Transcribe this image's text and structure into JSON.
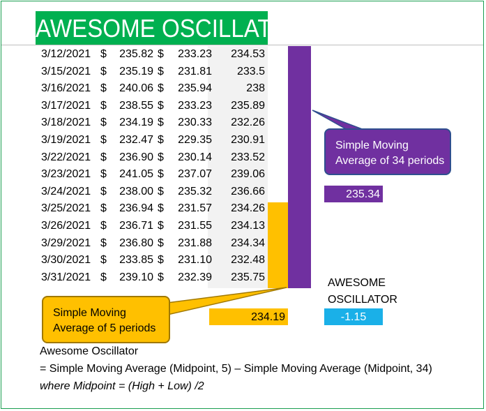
{
  "title": "AWESOME OSCILLATOR",
  "currency_symbol": "$",
  "rows": [
    {
      "date": "3/12/2021",
      "high": "235.82",
      "low": "233.23",
      "mid": "234.53"
    },
    {
      "date": "3/15/2021",
      "high": "235.19",
      "low": "231.81",
      "mid": "233.5"
    },
    {
      "date": "3/16/2021",
      "high": "240.06",
      "low": "235.94",
      "mid": "238"
    },
    {
      "date": "3/17/2021",
      "high": "238.55",
      "low": "233.23",
      "mid": "235.89"
    },
    {
      "date": "3/18/2021",
      "high": "234.19",
      "low": "230.33",
      "mid": "232.26"
    },
    {
      "date": "3/19/2021",
      "high": "232.47",
      "low": "229.35",
      "mid": "230.91"
    },
    {
      "date": "3/22/2021",
      "high": "236.90",
      "low": "230.14",
      "mid": "233.52"
    },
    {
      "date": "3/23/2021",
      "high": "241.05",
      "low": "237.07",
      "mid": "239.06"
    },
    {
      "date": "3/24/2021",
      "high": "238.00",
      "low": "235.32",
      "mid": "236.66"
    },
    {
      "date": "3/25/2021",
      "high": "236.94",
      "low": "231.57",
      "mid": "234.26"
    },
    {
      "date": "3/26/2021",
      "high": "236.71",
      "low": "231.55",
      "mid": "234.13"
    },
    {
      "date": "3/29/2021",
      "high": "236.80",
      "low": "231.88",
      "mid": "234.34"
    },
    {
      "date": "3/30/2021",
      "high": "233.85",
      "low": "231.10",
      "mid": "232.48"
    },
    {
      "date": "3/31/2021",
      "high": "239.10",
      "low": "232.39",
      "mid": "235.75"
    }
  ],
  "callouts": {
    "sma34_line1": "Simple Moving",
    "sma34_line2": "Average of 34 periods",
    "sma5_line1": "Simple Moving",
    "sma5_line2": "Average of 5 periods"
  },
  "results": {
    "sma34": "235.34",
    "sma5": "234.19",
    "ao_label_line1": "AWESOME",
    "ao_label_line2": "OSCILLATOR",
    "ao_value": "-1.15"
  },
  "formula": {
    "line1": "Awesome Oscillator",
    "line2": "= Simple Moving Average (Midpoint, 5) – Simple Moving Average (Midpoint, 34)",
    "line3": "where Midpoint = (High + Low) /2"
  },
  "colors": {
    "title_bg": "#00b050",
    "sma34": "#7030a0",
    "sma5": "#ffc000",
    "ao": "#1ab0e8"
  }
}
